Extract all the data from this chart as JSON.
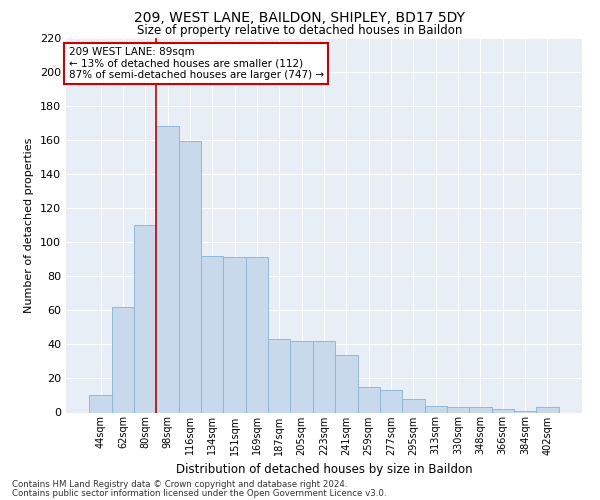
{
  "title1": "209, WEST LANE, BAILDON, SHIPLEY, BD17 5DY",
  "title2": "Size of property relative to detached houses in Baildon",
  "xlabel": "Distribution of detached houses by size in Baildon",
  "ylabel": "Number of detached properties",
  "categories": [
    "44sqm",
    "62sqm",
    "80sqm",
    "98sqm",
    "116sqm",
    "134sqm",
    "151sqm",
    "169sqm",
    "187sqm",
    "205sqm",
    "223sqm",
    "241sqm",
    "259sqm",
    "277sqm",
    "295sqm",
    "313sqm",
    "330sqm",
    "348sqm",
    "366sqm",
    "384sqm",
    "402sqm"
  ],
  "values": [
    10,
    62,
    110,
    168,
    159,
    92,
    91,
    91,
    43,
    42,
    42,
    34,
    15,
    13,
    8,
    4,
    3,
    3,
    2,
    1,
    3
  ],
  "bar_color": "#c9d9ec",
  "bar_edge_color": "#8fb8d8",
  "vline_x": 2.5,
  "vline_color": "#cc0000",
  "annotation_text": "209 WEST LANE: 89sqm\n← 13% of detached houses are smaller (112)\n87% of semi-detached houses are larger (747) →",
  "annotation_box_color": "#ffffff",
  "annotation_box_edge": "#cc0000",
  "ylim": [
    0,
    220
  ],
  "yticks": [
    0,
    20,
    40,
    60,
    80,
    100,
    120,
    140,
    160,
    180,
    200,
    220
  ],
  "bg_color": "#e8eef5",
  "footer1": "Contains HM Land Registry data © Crown copyright and database right 2024.",
  "footer2": "Contains public sector information licensed under the Open Government Licence v3.0."
}
